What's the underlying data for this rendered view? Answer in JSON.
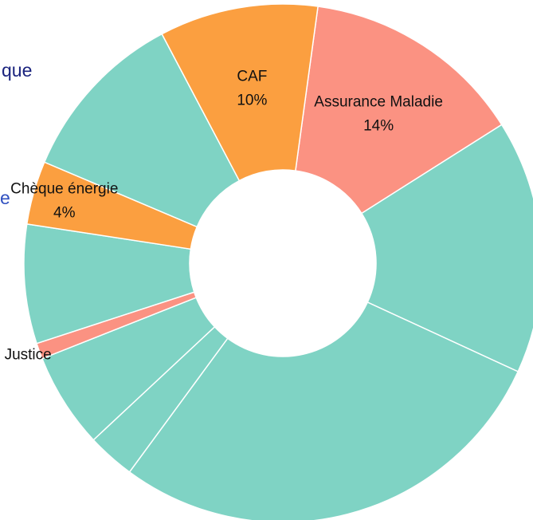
{
  "chart_data": {
    "type": "donut",
    "annotations": [
      "que",
      "e"
    ],
    "categories": [
      "Assurance Maladie",
      null,
      null,
      null,
      null,
      "Justice",
      null,
      "Chèque énergie",
      null,
      "CAF"
    ],
    "values": [
      14,
      16,
      28.5,
      3,
      6,
      1,
      7.5,
      4,
      11,
      10
    ],
    "value_labels": [
      "14%",
      null,
      null,
      null,
      null,
      null,
      null,
      "4%",
      null,
      "10%"
    ],
    "colors": [
      "#fb9282",
      "#7fd3c4",
      "#7fd3c4",
      "#7fd3c4",
      "#7fd3c4",
      "#fb9282",
      "#7fd3c4",
      "#fb9f40",
      "#7fd3c4",
      "#fb9f40"
    ]
  }
}
